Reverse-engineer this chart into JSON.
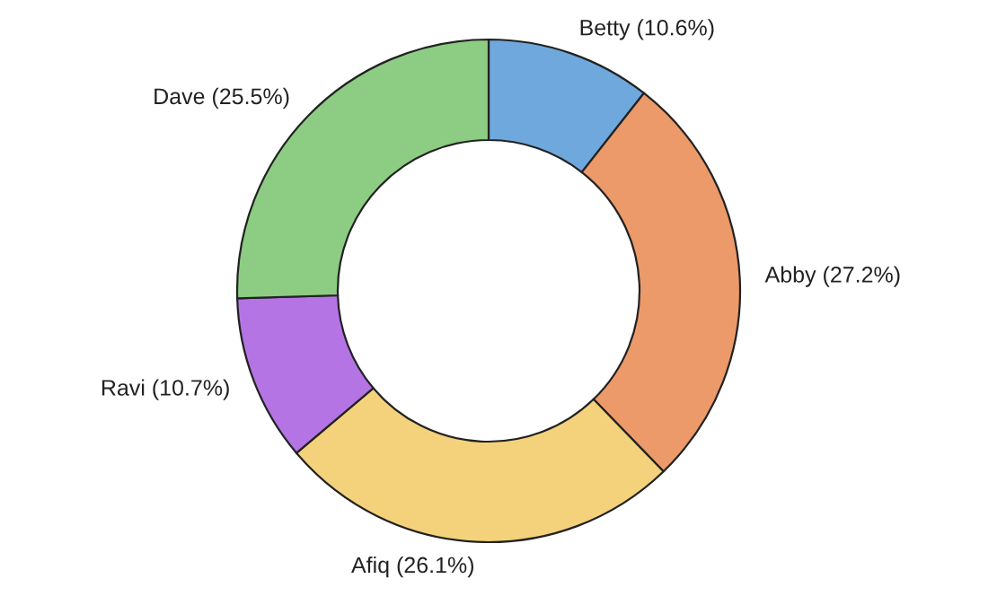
{
  "chart_data": {
    "type": "donut",
    "categories": [
      "Betty",
      "Abby",
      "Afiq",
      "Ravi",
      "Dave"
    ],
    "values": [
      10.6,
      27.2,
      26.1,
      10.7,
      25.5
    ],
    "value_labels": [
      "(10.6%)",
      "(27.2%)",
      "(26.1%)",
      "(10.7%)",
      "(25.5%)"
    ],
    "colors": [
      "#6fa8dc",
      "#ec9a6a",
      "#f4d27c",
      "#b574e4",
      "#8ccd83"
    ],
    "legend": false
  }
}
